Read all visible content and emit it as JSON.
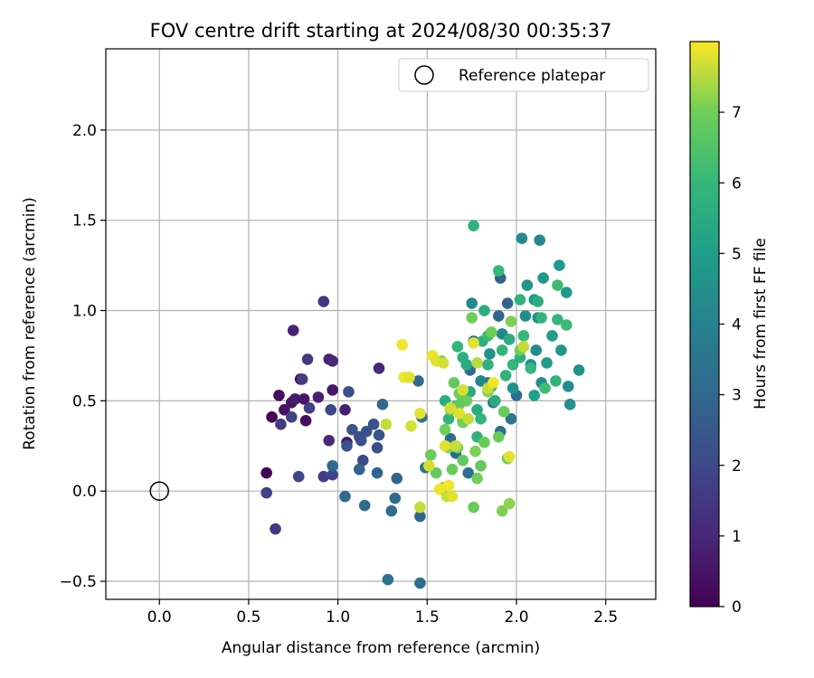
{
  "chart_data": {
    "type": "scatter",
    "title": "FOV centre drift starting at 2024/08/30 00:35:37",
    "xlabel": "Angular distance from reference (arcmin)",
    "ylabel": "Rotation from reference (arcmin)",
    "xlim": [
      -0.3,
      2.78
    ],
    "ylim": [
      -0.6,
      2.45
    ],
    "xticks": [
      0.0,
      0.5,
      1.0,
      1.5,
      2.0,
      2.5
    ],
    "xtick_labels": [
      "0.0",
      "0.5",
      "1.0",
      "1.5",
      "2.0",
      "2.5"
    ],
    "yticks": [
      -0.5,
      0.0,
      0.5,
      1.0,
      1.5,
      2.0
    ],
    "ytick_labels": [
      "−0.5",
      "0.0",
      "0.5",
      "1.0",
      "1.5",
      "2.0"
    ],
    "grid": true,
    "legend": {
      "location": "upper right",
      "entries": [
        {
          "label": "Reference platepar",
          "marker": "open-circle"
        }
      ]
    },
    "reference_point": {
      "x": 0.0,
      "y": 0.0
    },
    "colorbar": {
      "label": "Hours from first FF file",
      "colormap": "viridis",
      "range": [
        0,
        8.0
      ],
      "ticks": [
        0,
        1,
        2,
        3,
        4,
        5,
        6,
        7
      ],
      "tick_labels": [
        "0",
        "1",
        "2",
        "3",
        "4",
        "5",
        "6",
        "7"
      ]
    },
    "points": [
      {
        "x": 0.6,
        "y": 0.1,
        "h": 0.05
      },
      {
        "x": 0.63,
        "y": 0.41,
        "h": 0.1
      },
      {
        "x": 0.67,
        "y": 0.53,
        "h": 0.3
      },
      {
        "x": 0.7,
        "y": 0.45,
        "h": 0.4
      },
      {
        "x": 0.74,
        "y": 0.49,
        "h": 0.5
      },
      {
        "x": 0.76,
        "y": 0.51,
        "h": 0.7
      },
      {
        "x": 0.79,
        "y": 0.62,
        "h": 0.2
      },
      {
        "x": 0.81,
        "y": 0.51,
        "h": 0.6
      },
      {
        "x": 0.82,
        "y": 0.39,
        "h": 0.3
      },
      {
        "x": 0.75,
        "y": 0.89,
        "h": 0.9
      },
      {
        "x": 0.89,
        "y": 0.52,
        "h": 0.8
      },
      {
        "x": 0.95,
        "y": 0.73,
        "h": 0.9
      },
      {
        "x": 0.97,
        "y": 0.72,
        "h": 1.0
      },
      {
        "x": 0.97,
        "y": 0.56,
        "h": 0.6
      },
      {
        "x": 0.95,
        "y": 0.28,
        "h": 1.1
      },
      {
        "x": 1.04,
        "y": 0.45,
        "h": 0.8
      },
      {
        "x": 1.05,
        "y": 0.27,
        "h": 0.7
      },
      {
        "x": 1.23,
        "y": 0.68,
        "h": 1.0
      },
      {
        "x": 0.68,
        "y": 0.37,
        "h": 1.6
      },
      {
        "x": 0.74,
        "y": 0.41,
        "h": 1.8
      },
      {
        "x": 0.78,
        "y": 0.08,
        "h": 1.9
      },
      {
        "x": 0.8,
        "y": 0.62,
        "h": 1.6
      },
      {
        "x": 0.83,
        "y": 0.73,
        "h": 1.5
      },
      {
        "x": 0.84,
        "y": 0.46,
        "h": 1.7
      },
      {
        "x": 0.92,
        "y": 1.05,
        "h": 1.4
      },
      {
        "x": 0.6,
        "y": -0.01,
        "h": 1.8
      },
      {
        "x": 0.65,
        "y": -0.21,
        "h": 1.5
      },
      {
        "x": 0.92,
        "y": 0.08,
        "h": 1.6
      },
      {
        "x": 0.97,
        "y": 0.09,
        "h": 1.9
      },
      {
        "x": 0.96,
        "y": 0.45,
        "h": 1.9
      },
      {
        "x": 1.05,
        "y": 0.25,
        "h": 2.3
      },
      {
        "x": 1.06,
        "y": 0.55,
        "h": 2.2
      },
      {
        "x": 1.08,
        "y": 0.34,
        "h": 2.4
      },
      {
        "x": 1.12,
        "y": 0.3,
        "h": 2.1
      },
      {
        "x": 1.13,
        "y": 0.28,
        "h": 2.2
      },
      {
        "x": 1.14,
        "y": 0.17,
        "h": 2.0
      },
      {
        "x": 1.16,
        "y": 0.33,
        "h": 2.3
      },
      {
        "x": 1.2,
        "y": 0.37,
        "h": 2.2
      },
      {
        "x": 1.22,
        "y": 0.24,
        "h": 2.2
      },
      {
        "x": 1.23,
        "y": 0.31,
        "h": 2.4
      },
      {
        "x": 0.97,
        "y": 0.14,
        "h": 3.1
      },
      {
        "x": 1.04,
        "y": -0.03,
        "h": 3.0
      },
      {
        "x": 1.12,
        "y": 0.12,
        "h": 2.8
      },
      {
        "x": 1.15,
        "y": -0.08,
        "h": 3.1
      },
      {
        "x": 1.22,
        "y": 0.1,
        "h": 2.9
      },
      {
        "x": 1.25,
        "y": 0.48,
        "h": 3.0
      },
      {
        "x": 1.28,
        "y": -0.49,
        "h": 3.3
      },
      {
        "x": 1.3,
        "y": -0.11,
        "h": 3.2
      },
      {
        "x": 1.32,
        "y": -0.04,
        "h": 3.1
      },
      {
        "x": 1.33,
        "y": 0.07,
        "h": 2.9
      },
      {
        "x": 1.45,
        "y": 0.61,
        "h": 3.0
      },
      {
        "x": 1.46,
        "y": -0.51,
        "h": 3.2
      },
      {
        "x": 1.46,
        "y": -0.14,
        "h": 2.9
      },
      {
        "x": 1.47,
        "y": 0.41,
        "h": 3.3
      },
      {
        "x": 1.49,
        "y": 0.13,
        "h": 3.4
      },
      {
        "x": 1.63,
        "y": 0.29,
        "h": 3.2
      },
      {
        "x": 1.66,
        "y": 0.21,
        "h": 3.0
      },
      {
        "x": 1.7,
        "y": 0.39,
        "h": 3.3
      },
      {
        "x": 1.73,
        "y": 0.1,
        "h": 3.4
      },
      {
        "x": 1.74,
        "y": 0.67,
        "h": 3.1
      },
      {
        "x": 1.76,
        "y": 0.83,
        "h": 3.5
      },
      {
        "x": 1.84,
        "y": 0.6,
        "h": 3.4
      },
      {
        "x": 1.87,
        "y": 0.49,
        "h": 3.6
      },
      {
        "x": 1.91,
        "y": 0.33,
        "h": 3.2
      },
      {
        "x": 1.9,
        "y": 0.97,
        "h": 3.0
      },
      {
        "x": 1.91,
        "y": 1.18,
        "h": 2.8
      },
      {
        "x": 1.95,
        "y": 1.04,
        "h": 2.9
      },
      {
        "x": 1.97,
        "y": 0.4,
        "h": 3.6
      },
      {
        "x": 2.0,
        "y": 0.53,
        "h": 3.2
      },
      {
        "x": 1.75,
        "y": 1.04,
        "h": 4.3
      },
      {
        "x": 1.8,
        "y": 0.61,
        "h": 4.1
      },
      {
        "x": 1.85,
        "y": 0.76,
        "h": 4.5
      },
      {
        "x": 1.92,
        "y": 0.87,
        "h": 4.2
      },
      {
        "x": 1.98,
        "y": 0.57,
        "h": 4.6
      },
      {
        "x": 2.03,
        "y": 1.4,
        "h": 4.3
      },
      {
        "x": 2.05,
        "y": 0.97,
        "h": 4.4
      },
      {
        "x": 2.06,
        "y": 1.14,
        "h": 4.7
      },
      {
        "x": 2.08,
        "y": 0.7,
        "h": 4.5
      },
      {
        "x": 2.1,
        "y": 1.06,
        "h": 4.8
      },
      {
        "x": 2.11,
        "y": 0.78,
        "h": 4.3
      },
      {
        "x": 2.12,
        "y": 0.96,
        "h": 4.6
      },
      {
        "x": 2.13,
        "y": 1.39,
        "h": 4.2
      },
      {
        "x": 2.14,
        "y": 0.6,
        "h": 4.4
      },
      {
        "x": 2.15,
        "y": 1.18,
        "h": 4.8
      },
      {
        "x": 2.17,
        "y": 0.71,
        "h": 4.9
      },
      {
        "x": 2.2,
        "y": 0.86,
        "h": 5.0
      },
      {
        "x": 2.24,
        "y": 1.25,
        "h": 4.9
      },
      {
        "x": 2.25,
        "y": 0.78,
        "h": 4.7
      },
      {
        "x": 2.29,
        "y": 0.58,
        "h": 4.4
      },
      {
        "x": 2.3,
        "y": 0.48,
        "h": 4.5
      },
      {
        "x": 2.35,
        "y": 0.67,
        "h": 4.6
      },
      {
        "x": 2.28,
        "y": 1.1,
        "h": 4.8
      },
      {
        "x": 2.1,
        "y": 0.53,
        "h": 5.1
      },
      {
        "x": 1.6,
        "y": 0.5,
        "h": 5.6
      },
      {
        "x": 1.62,
        "y": 0.4,
        "h": 5.8
      },
      {
        "x": 1.66,
        "y": 0.47,
        "h": 5.5
      },
      {
        "x": 1.67,
        "y": 0.8,
        "h": 5.9
      },
      {
        "x": 1.7,
        "y": 0.74,
        "h": 5.7
      },
      {
        "x": 1.72,
        "y": 0.7,
        "h": 5.6
      },
      {
        "x": 1.74,
        "y": 0.55,
        "h": 5.4
      },
      {
        "x": 1.76,
        "y": 1.47,
        "h": 5.8
      },
      {
        "x": 1.78,
        "y": 0.45,
        "h": 5.5
      },
      {
        "x": 1.8,
        "y": 0.4,
        "h": 5.9
      },
      {
        "x": 1.81,
        "y": 0.83,
        "h": 5.7
      },
      {
        "x": 1.82,
        "y": 1.0,
        "h": 5.6
      },
      {
        "x": 1.84,
        "y": 0.7,
        "h": 5.8
      },
      {
        "x": 1.86,
        "y": 0.58,
        "h": 5.7
      },
      {
        "x": 1.88,
        "y": 0.5,
        "h": 5.5
      },
      {
        "x": 1.9,
        "y": 1.22,
        "h": 6.0
      },
      {
        "x": 1.92,
        "y": 0.78,
        "h": 5.9
      },
      {
        "x": 1.94,
        "y": 0.64,
        "h": 5.8
      },
      {
        "x": 1.96,
        "y": 0.84,
        "h": 5.6
      },
      {
        "x": 1.98,
        "y": 0.7,
        "h": 5.9
      },
      {
        "x": 2.02,
        "y": 1.06,
        "h": 5.8
      },
      {
        "x": 2.02,
        "y": 0.74,
        "h": 5.7
      },
      {
        "x": 2.04,
        "y": 0.86,
        "h": 6.0
      },
      {
        "x": 2.08,
        "y": 0.68,
        "h": 5.9
      },
      {
        "x": 2.12,
        "y": 1.05,
        "h": 5.6
      },
      {
        "x": 2.14,
        "y": 0.96,
        "h": 5.9
      },
      {
        "x": 2.16,
        "y": 0.57,
        "h": 6.2
      },
      {
        "x": 2.23,
        "y": 0.95,
        "h": 6.0
      },
      {
        "x": 2.23,
        "y": 1.14,
        "h": 6.2
      },
      {
        "x": 2.28,
        "y": 0.92,
        "h": 6.1
      },
      {
        "x": 2.22,
        "y": 0.61,
        "h": 5.8
      },
      {
        "x": 1.78,
        "y": 0.3,
        "h": 5.8
      },
      {
        "x": 1.84,
        "y": 0.86,
        "h": 6.1
      },
      {
        "x": 1.52,
        "y": 0.2,
        "h": 6.9
      },
      {
        "x": 1.55,
        "y": 0.1,
        "h": 6.8
      },
      {
        "x": 1.58,
        "y": 0.72,
        "h": 6.9
      },
      {
        "x": 1.6,
        "y": 0.34,
        "h": 7.0
      },
      {
        "x": 1.62,
        "y": 0.24,
        "h": 7.1
      },
      {
        "x": 1.63,
        "y": 0.45,
        "h": 7.0
      },
      {
        "x": 1.64,
        "y": 0.12,
        "h": 6.9
      },
      {
        "x": 1.65,
        "y": 0.6,
        "h": 6.8
      },
      {
        "x": 1.67,
        "y": 0.24,
        "h": 6.9
      },
      {
        "x": 1.68,
        "y": 0.54,
        "h": 7.0
      },
      {
        "x": 1.7,
        "y": 0.17,
        "h": 6.8
      },
      {
        "x": 1.72,
        "y": 0.5,
        "h": 6.9
      },
      {
        "x": 1.75,
        "y": 0.96,
        "h": 7.0
      },
      {
        "x": 1.76,
        "y": -0.09,
        "h": 6.9
      },
      {
        "x": 1.77,
        "y": 0.22,
        "h": 7.1
      },
      {
        "x": 1.78,
        "y": 0.07,
        "h": 7.0
      },
      {
        "x": 1.8,
        "y": 0.14,
        "h": 6.8
      },
      {
        "x": 1.82,
        "y": 0.27,
        "h": 6.9
      },
      {
        "x": 1.84,
        "y": 0.55,
        "h": 7.2
      },
      {
        "x": 1.86,
        "y": 0.88,
        "h": 7.0
      },
      {
        "x": 1.9,
        "y": 0.3,
        "h": 6.9
      },
      {
        "x": 1.92,
        "y": -0.11,
        "h": 7.1
      },
      {
        "x": 1.93,
        "y": 0.44,
        "h": 6.9
      },
      {
        "x": 1.95,
        "y": 0.18,
        "h": 7.0
      },
      {
        "x": 1.96,
        "y": -0.07,
        "h": 7.2
      },
      {
        "x": 1.97,
        "y": 0.94,
        "h": 7.1
      },
      {
        "x": 2.02,
        "y": 0.78,
        "h": 7.0
      },
      {
        "x": 1.68,
        "y": 0.48,
        "h": 6.8
      },
      {
        "x": 1.7,
        "y": 0.38,
        "h": 7.0
      },
      {
        "x": 1.59,
        "y": 0.02,
        "h": 7.3
      },
      {
        "x": 1.27,
        "y": 0.37,
        "h": 7.6
      },
      {
        "x": 1.36,
        "y": 0.81,
        "h": 7.9
      },
      {
        "x": 1.37,
        "y": 0.63,
        "h": 7.9
      },
      {
        "x": 1.4,
        "y": 0.63,
        "h": 7.8
      },
      {
        "x": 1.41,
        "y": 0.36,
        "h": 7.7
      },
      {
        "x": 1.46,
        "y": 0.43,
        "h": 7.8
      },
      {
        "x": 1.46,
        "y": -0.09,
        "h": 7.6
      },
      {
        "x": 1.51,
        "y": 0.14,
        "h": 7.7
      },
      {
        "x": 1.53,
        "y": 0.75,
        "h": 7.9
      },
      {
        "x": 1.55,
        "y": 0.72,
        "h": 7.8
      },
      {
        "x": 1.57,
        "y": 0.01,
        "h": 7.9
      },
      {
        "x": 1.59,
        "y": 0.71,
        "h": 7.7
      },
      {
        "x": 1.6,
        "y": 0.25,
        "h": 7.8
      },
      {
        "x": 1.61,
        "y": -0.03,
        "h": 7.6
      },
      {
        "x": 1.62,
        "y": 0.03,
        "h": 7.9
      },
      {
        "x": 1.63,
        "y": 0.46,
        "h": 7.7
      },
      {
        "x": 1.64,
        "y": -0.03,
        "h": 7.8
      },
      {
        "x": 1.66,
        "y": 0.25,
        "h": 7.6
      },
      {
        "x": 1.68,
        "y": 0.43,
        "h": 7.8
      },
      {
        "x": 1.7,
        "y": 0.56,
        "h": 7.7
      },
      {
        "x": 1.73,
        "y": 0.4,
        "h": 7.6
      },
      {
        "x": 1.76,
        "y": 0.82,
        "h": 7.8
      },
      {
        "x": 1.78,
        "y": 0.71,
        "h": 7.5
      },
      {
        "x": 1.84,
        "y": 0.57,
        "h": 7.6
      },
      {
        "x": 1.87,
        "y": 0.6,
        "h": 7.9
      },
      {
        "x": 1.96,
        "y": 0.19,
        "h": 7.8
      },
      {
        "x": 2.04,
        "y": 0.8,
        "h": 7.6
      }
    ]
  }
}
